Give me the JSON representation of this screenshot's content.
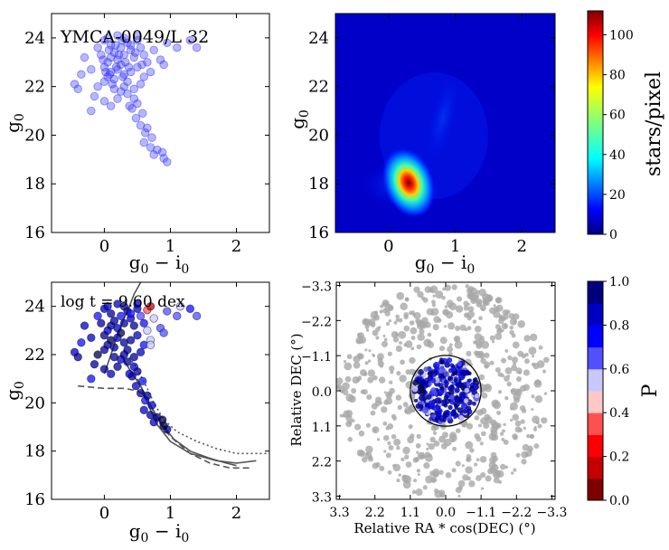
{
  "chart_data": [
    {
      "id": "panel-a",
      "type": "scatter",
      "annotation": "YMCA-0049/L 32",
      "xlabel": "g0 − i0",
      "ylabel": "g0",
      "xlim": [
        -0.8,
        2.5
      ],
      "ylim": [
        25,
        16
      ],
      "xticks": [
        0,
        1,
        2
      ],
      "yticks": [
        16,
        18,
        20,
        22,
        24
      ],
      "color": "#3030ff",
      "points": [
        [
          0.95,
          18.9
        ],
        [
          0.9,
          19.05
        ],
        [
          0.75,
          19.2
        ],
        [
          0.7,
          19.5
        ],
        [
          0.8,
          19.4
        ],
        [
          0.88,
          19.3
        ],
        [
          0.6,
          19.7
        ],
        [
          0.72,
          19.9
        ],
        [
          0.62,
          20.1
        ],
        [
          0.55,
          20.4
        ],
        [
          0.65,
          20.3
        ],
        [
          0.48,
          20.7
        ],
        [
          0.58,
          20.9
        ],
        [
          0.42,
          21.1
        ],
        [
          0.5,
          21.3
        ],
        [
          0.45,
          21.5
        ],
        [
          0.35,
          21.7
        ],
        [
          0.38,
          21.2
        ],
        [
          -0.2,
          21.0
        ],
        [
          -0.15,
          21.6
        ],
        [
          0.0,
          21.4
        ],
        [
          0.1,
          21.2
        ],
        [
          0.2,
          21.5
        ],
        [
          0.25,
          21.8
        ],
        [
          -0.45,
          22.1
        ],
        [
          -0.35,
          22.5
        ],
        [
          -0.4,
          21.9
        ],
        [
          -0.1,
          22.0
        ],
        [
          0.0,
          22.2
        ],
        [
          0.05,
          22.4
        ],
        [
          0.1,
          22.6
        ],
        [
          0.15,
          22.3
        ],
        [
          0.2,
          22.7
        ],
        [
          0.25,
          22.9
        ],
        [
          0.3,
          22.5
        ],
        [
          0.0,
          22.8
        ],
        [
          0.05,
          23.0
        ],
        [
          0.1,
          23.2
        ],
        [
          0.15,
          23.4
        ],
        [
          0.2,
          23.1
        ],
        [
          0.25,
          23.6
        ],
        [
          0.3,
          23.3
        ],
        [
          0.35,
          23.8
        ],
        [
          0.4,
          23.5
        ],
        [
          0.45,
          23.2
        ],
        [
          0.5,
          23.9
        ],
        [
          0.55,
          23.6
        ],
        [
          0.6,
          23.3
        ],
        [
          0.65,
          23.0
        ],
        [
          -0.05,
          23.3
        ],
        [
          -0.1,
          23.6
        ],
        [
          0.0,
          23.9
        ],
        [
          0.05,
          24.0
        ],
        [
          0.1,
          23.7
        ],
        [
          0.2,
          24.1
        ],
        [
          0.3,
          24.0
        ],
        [
          0.4,
          23.7
        ],
        [
          0.5,
          24.1
        ],
        [
          0.75,
          23.5
        ],
        [
          0.85,
          23.1
        ],
        [
          0.95,
          23.8
        ],
        [
          1.1,
          23.6
        ],
        [
          1.3,
          23.9
        ],
        [
          1.4,
          23.6
        ],
        [
          0.9,
          22.9
        ],
        [
          0.7,
          22.6
        ],
        [
          0.6,
          22.4
        ],
        [
          0.55,
          22.1
        ],
        [
          0.45,
          21.9
        ],
        [
          0.35,
          22.2
        ],
        [
          0.4,
          22.6
        ],
        [
          0.5,
          22.8
        ],
        [
          -0.3,
          23.2
        ],
        [
          -0.2,
          22.7
        ],
        [
          0.15,
          21.9
        ],
        [
          0.3,
          22.0
        ],
        [
          0.08,
          22.5
        ],
        [
          0.12,
          22.1
        ],
        [
          0.18,
          22.8
        ],
        [
          0.22,
          23.3
        ],
        [
          0.28,
          22.4
        ],
        [
          0.32,
          23.0
        ],
        [
          0.02,
          22.6
        ],
        [
          -0.02,
          23.1
        ],
        [
          0.07,
          23.5
        ],
        [
          0.17,
          23.7
        ],
        [
          0.27,
          23.9
        ],
        [
          0.37,
          22.8
        ],
        [
          0.47,
          23.4
        ],
        [
          0.57,
          22.9
        ]
      ]
    },
    {
      "id": "panel-b",
      "type": "heatmap",
      "xlabel": "g0 − i0",
      "ylabel": "g0",
      "xlim": [
        -0.8,
        2.5
      ],
      "ylim": [
        25,
        16
      ],
      "xticks": [
        0,
        1,
        2
      ],
      "yticks": [
        16,
        18,
        20,
        22,
        24
      ],
      "colorbar": {
        "label": "stars/pixel",
        "ticks": [
          0,
          20,
          40,
          60,
          80,
          100
        ],
        "max": 112
      }
    },
    {
      "id": "panel-c",
      "type": "scatter",
      "annotation": "log t = 9.60 dex",
      "xlabel": "g0 − i0",
      "ylabel": "g0",
      "xlim": [
        -0.8,
        2.5
      ],
      "ylim": [
        25,
        16
      ],
      "xticks": [
        0,
        1,
        2
      ],
      "yticks": [
        16,
        18,
        20,
        22,
        24
      ],
      "series": [
        {
          "name": "isochrone-1",
          "style": "dashed",
          "x": [
            -0.4,
            0.0,
            0.3,
            0.5,
            0.62,
            0.7,
            0.8,
            1.0,
            1.3,
            1.6,
            1.9,
            2.2
          ],
          "y": [
            20.7,
            20.6,
            20.6,
            20.5,
            20.3,
            19.9,
            19.3,
            18.6,
            17.9,
            17.5,
            17.3,
            17.3
          ]
        },
        {
          "name": "isochrone-2",
          "style": "solid",
          "x": [
            0.25,
            0.4,
            0.55,
            0.62,
            0.7,
            0.8,
            1.0,
            1.3,
            1.7,
            2.0,
            2.3
          ],
          "y": [
            22.0,
            21.3,
            20.7,
            20.2,
            19.7,
            19.1,
            18.4,
            17.9,
            17.6,
            17.5,
            17.6
          ]
        },
        {
          "name": "isochrone-3",
          "style": "dotted",
          "x": [
            0.3,
            0.5,
            0.65,
            0.75,
            0.9,
            1.1,
            1.4,
            1.7,
            2.0,
            2.3,
            2.5
          ],
          "y": [
            22.2,
            21.4,
            20.6,
            20.0,
            19.3,
            18.8,
            18.4,
            18.1,
            17.9,
            17.9,
            17.9
          ]
        },
        {
          "name": "isochrone-4",
          "style": "solid",
          "x": [
            0.5,
            0.62,
            0.72,
            0.85,
            1.05,
            1.3,
            1.6,
            1.85,
            2.0
          ],
          "y": [
            21.0,
            20.3,
            19.8,
            19.2,
            18.5,
            18.0,
            17.7,
            17.5,
            17.4
          ]
        },
        {
          "name": "lower-main-sequence",
          "style": "solid",
          "x": [
            0.0,
            0.1,
            0.2,
            0.3,
            0.38,
            0.45,
            0.55
          ],
          "y": [
            21.2,
            22.0,
            22.8,
            23.5,
            24.0,
            24.5,
            25.0
          ]
        }
      ],
      "points": [
        [
          0.95,
          18.9,
          0.9
        ],
        [
          0.9,
          19.05,
          0.95
        ],
        [
          0.75,
          19.2,
          0.8
        ],
        [
          0.7,
          19.5,
          0.85
        ],
        [
          0.8,
          19.4,
          0.9
        ],
        [
          0.88,
          19.3,
          0.95
        ],
        [
          0.6,
          19.7,
          0.75
        ],
        [
          0.72,
          19.9,
          0.8
        ],
        [
          0.62,
          20.1,
          0.7
        ],
        [
          0.55,
          20.4,
          0.85
        ],
        [
          0.65,
          20.3,
          0.9
        ],
        [
          0.48,
          20.7,
          0.8
        ],
        [
          0.58,
          20.9,
          0.7
        ],
        [
          0.42,
          21.1,
          0.85
        ],
        [
          0.5,
          21.3,
          0.9
        ],
        [
          0.45,
          21.5,
          0.75
        ],
        [
          0.35,
          21.7,
          0.9
        ],
        [
          0.38,
          21.2,
          0.8
        ],
        [
          -0.2,
          21.0,
          0.7
        ],
        [
          -0.15,
          21.6,
          0.85
        ],
        [
          0.0,
          21.4,
          0.9
        ],
        [
          0.1,
          21.2,
          0.8
        ],
        [
          0.2,
          21.5,
          0.9
        ],
        [
          0.25,
          21.8,
          0.75
        ],
        [
          -0.45,
          22.1,
          0.8
        ],
        [
          -0.35,
          22.5,
          0.7
        ],
        [
          -0.4,
          21.9,
          0.85
        ],
        [
          -0.1,
          22.0,
          0.95
        ],
        [
          0.0,
          22.2,
          0.9
        ],
        [
          0.05,
          22.4,
          0.85
        ],
        [
          0.1,
          22.6,
          0.95
        ],
        [
          0.15,
          22.3,
          0.9
        ],
        [
          0.2,
          22.7,
          0.8
        ],
        [
          0.25,
          22.9,
          0.95
        ],
        [
          0.3,
          22.5,
          0.85
        ],
        [
          0.0,
          22.8,
          0.9
        ],
        [
          0.05,
          23.0,
          0.75
        ],
        [
          0.1,
          23.2,
          0.9
        ],
        [
          0.15,
          23.4,
          0.85
        ],
        [
          0.2,
          23.1,
          0.8
        ],
        [
          0.25,
          23.6,
          0.7
        ],
        [
          0.3,
          23.3,
          0.9
        ],
        [
          0.35,
          23.8,
          0.85
        ],
        [
          0.4,
          23.5,
          0.75
        ],
        [
          0.45,
          23.2,
          0.9
        ],
        [
          0.5,
          23.9,
          0.8
        ],
        [
          0.55,
          23.6,
          0.6
        ],
        [
          0.6,
          23.3,
          0.7
        ],
        [
          0.65,
          23.0,
          0.5
        ],
        [
          -0.05,
          23.3,
          0.85
        ],
        [
          -0.1,
          23.6,
          0.7
        ],
        [
          0.0,
          23.9,
          0.8
        ],
        [
          0.05,
          24.0,
          0.75
        ],
        [
          0.1,
          23.7,
          0.9
        ],
        [
          0.2,
          24.1,
          0.8
        ],
        [
          0.3,
          24.0,
          0.85
        ],
        [
          0.4,
          23.7,
          0.7
        ],
        [
          0.5,
          24.1,
          0.75
        ],
        [
          0.75,
          23.5,
          0.45
        ],
        [
          0.85,
          23.1,
          0.6
        ],
        [
          0.95,
          23.8,
          0.55
        ],
        [
          1.1,
          23.6,
          0.6
        ],
        [
          1.3,
          23.9,
          0.7
        ],
        [
          1.4,
          23.6,
          0.55
        ],
        [
          0.9,
          22.9,
          0.6
        ],
        [
          0.7,
          22.6,
          0.5
        ],
        [
          0.6,
          22.4,
          0.7
        ],
        [
          0.55,
          22.1,
          0.8
        ],
        [
          0.45,
          21.9,
          0.85
        ],
        [
          0.35,
          22.2,
          0.9
        ],
        [
          0.4,
          22.6,
          0.85
        ],
        [
          0.5,
          22.8,
          0.8
        ],
        [
          -0.3,
          23.2,
          0.75
        ],
        [
          -0.2,
          22.7,
          0.8
        ],
        [
          0.15,
          21.9,
          0.9
        ],
        [
          0.3,
          22.0,
          0.85
        ],
        [
          0.65,
          23.85,
          0.3
        ],
        [
          0.7,
          24.0,
          0.05
        ],
        [
          1.15,
          24.0,
          0.45
        ],
        [
          0.7,
          22.4,
          0.45
        ]
      ]
    },
    {
      "id": "panel-d",
      "type": "scatter",
      "xlabel": "Relative RA * cos(DEC) (°)",
      "ylabel": "Relative DEC (°)",
      "xlim": [
        3.4,
        -3.4
      ],
      "ylim": [
        -3.4,
        3.4
      ],
      "xticks": [
        "3.3",
        "2.2",
        "1.1",
        "0.0",
        "−1.1",
        "−2.2",
        "−3.3"
      ],
      "yticks": [
        "−3.3",
        "−2.2",
        "−1.1",
        "0.0",
        "1.1",
        "2.2",
        "3.3"
      ],
      "circle_radius": 1.1,
      "colorbar": {
        "label": "P",
        "ticks": [
          "0.0",
          "0.2",
          "0.4",
          "0.6",
          "0.8",
          "1.0"
        ]
      }
    }
  ]
}
